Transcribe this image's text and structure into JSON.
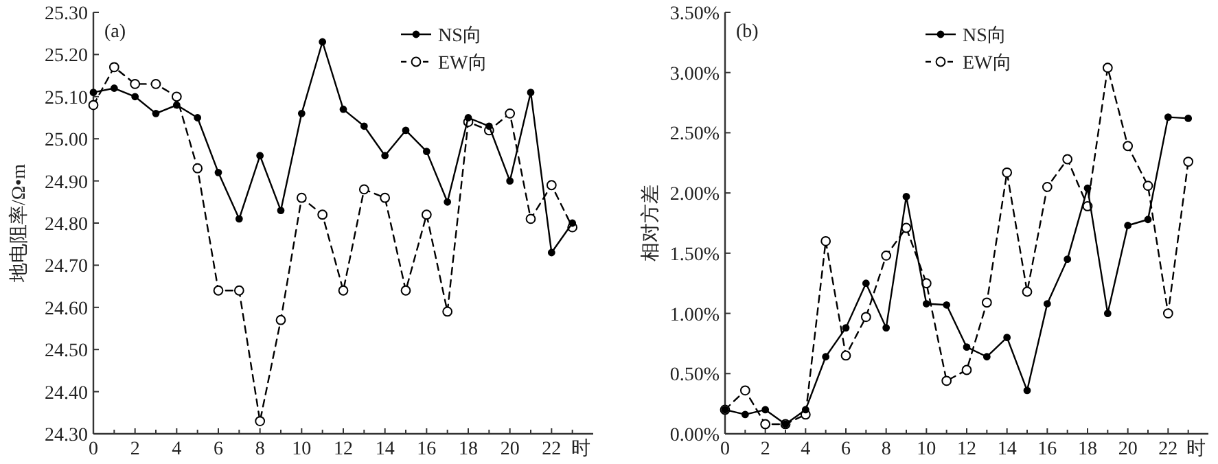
{
  "chart_data": [
    {
      "type": "line",
      "ylabel": "地电阻率/Ω•m",
      "xlabel": "时",
      "annotations": [
        "(a)"
      ],
      "legend": "top right",
      "grid": false,
      "marker": "circle",
      "x": [
        0,
        1,
        2,
        3,
        4,
        5,
        6,
        7,
        8,
        9,
        10,
        11,
        12,
        13,
        14,
        15,
        16,
        17,
        18,
        19,
        20,
        21,
        22,
        23
      ],
      "xlim": [
        0,
        24
      ],
      "xticks": [
        0,
        {
          "value": 1,
          "label": null
        },
        2,
        {
          "value": 3,
          "label": null
        },
        4,
        {
          "value": 5,
          "label": null
        },
        6,
        {
          "value": 7,
          "label": null
        },
        8,
        {
          "value": 9,
          "label": null
        },
        10,
        {
          "value": 11,
          "label": null
        },
        12,
        {
          "value": 13,
          "label": null
        },
        14,
        {
          "value": 15,
          "label": null
        },
        16,
        {
          "value": 17,
          "label": null
        },
        18,
        {
          "value": 19,
          "label": null
        },
        20,
        {
          "value": 21,
          "label": null
        },
        22,
        {
          "value": 23,
          "label": null
        }
      ],
      "ylim": [
        24.3,
        25.3
      ],
      "yticks": [
        {
          "value": 24.3,
          "label": "24.30"
        },
        {
          "value": 24.4,
          "label": "24.40"
        },
        {
          "value": 24.5,
          "label": "24.50"
        },
        {
          "value": 24.6,
          "label": "24.60"
        },
        {
          "value": 24.7,
          "label": "24.70"
        },
        {
          "value": 24.8,
          "label": "24.80"
        },
        {
          "value": 24.9,
          "label": "24.90"
        },
        {
          "value": 25.0,
          "label": "25.00"
        },
        {
          "value": 25.1,
          "label": "25.10"
        },
        {
          "value": 25.2,
          "label": "25.20"
        },
        {
          "value": 25.3,
          "label": "25.30"
        }
      ],
      "series": [
        {
          "name": "NS向",
          "color": "#000000",
          "line_style": "solid",
          "values": [
            25.11,
            25.12,
            25.1,
            25.06,
            25.08,
            25.05,
            24.92,
            24.81,
            24.96,
            24.83,
            25.06,
            25.23,
            25.07,
            25.03,
            24.96,
            25.02,
            24.97,
            24.85,
            25.05,
            25.03,
            24.9,
            25.11,
            24.73,
            24.8
          ]
        },
        {
          "name": "EW向",
          "color": "#000000",
          "line_style": "dashed",
          "values": [
            25.08,
            25.17,
            25.13,
            25.13,
            25.1,
            24.93,
            24.64,
            24.64,
            24.33,
            24.57,
            24.86,
            24.82,
            24.64,
            24.88,
            24.86,
            24.64,
            24.82,
            24.59,
            25.04,
            25.02,
            25.06,
            24.81,
            24.89,
            24.79
          ]
        }
      ]
    },
    {
      "type": "line",
      "ylabel": "相对方差",
      "xlabel": "时",
      "annotations": [
        "(b)"
      ],
      "legend": "top",
      "grid": false,
      "marker": "circle",
      "x": [
        0,
        1,
        2,
        3,
        4,
        5,
        6,
        7,
        8,
        9,
        10,
        11,
        12,
        13,
        14,
        15,
        16,
        17,
        18,
        19,
        20,
        21,
        22,
        23
      ],
      "xlim": [
        0,
        24
      ],
      "xticks": [
        0,
        {
          "value": 1,
          "label": null
        },
        2,
        {
          "value": 3,
          "label": null
        },
        4,
        {
          "value": 5,
          "label": null
        },
        6,
        {
          "value": 7,
          "label": null
        },
        8,
        {
          "value": 9,
          "label": null
        },
        10,
        {
          "value": 11,
          "label": null
        },
        12,
        {
          "value": 13,
          "label": null
        },
        14,
        {
          "value": 15,
          "label": null
        },
        16,
        {
          "value": 17,
          "label": null
        },
        18,
        {
          "value": 19,
          "label": null
        },
        20,
        {
          "value": 21,
          "label": null
        },
        22,
        {
          "value": 23,
          "label": null
        }
      ],
      "ylim": [
        0,
        3.5
      ],
      "yticks": [
        {
          "value": 0,
          "label": "0.00%"
        },
        {
          "value": 0.5,
          "label": "0.50%"
        },
        {
          "value": 1.0,
          "label": "1.00%"
        },
        {
          "value": 1.5,
          "label": "1.50%"
        },
        {
          "value": 2.0,
          "label": "2.00%"
        },
        {
          "value": 2.5,
          "label": "2.50%"
        },
        {
          "value": 3.0,
          "label": "3.00%"
        },
        {
          "value": 3.5,
          "label": "3.50%"
        }
      ],
      "series": [
        {
          "name": "NS向",
          "color": "#000000",
          "line_style": "solid",
          "values": [
            0.2,
            0.16,
            0.2,
            0.08,
            0.2,
            0.64,
            0.88,
            1.25,
            0.88,
            1.97,
            1.08,
            1.07,
            0.72,
            0.64,
            0.8,
            0.36,
            1.08,
            1.45,
            2.04,
            1.0,
            1.73,
            1.78,
            2.63,
            2.62
          ]
        },
        {
          "name": "EW向",
          "color": "#000000",
          "line_style": "dashed",
          "values": [
            0.2,
            0.36,
            0.08,
            0.08,
            0.16,
            1.6,
            0.65,
            0.97,
            1.48,
            1.71,
            1.25,
            0.44,
            0.53,
            1.09,
            2.17,
            1.18,
            2.05,
            2.28,
            1.89,
            3.04,
            2.39,
            2.06,
            1.0,
            2.26
          ]
        }
      ]
    }
  ]
}
